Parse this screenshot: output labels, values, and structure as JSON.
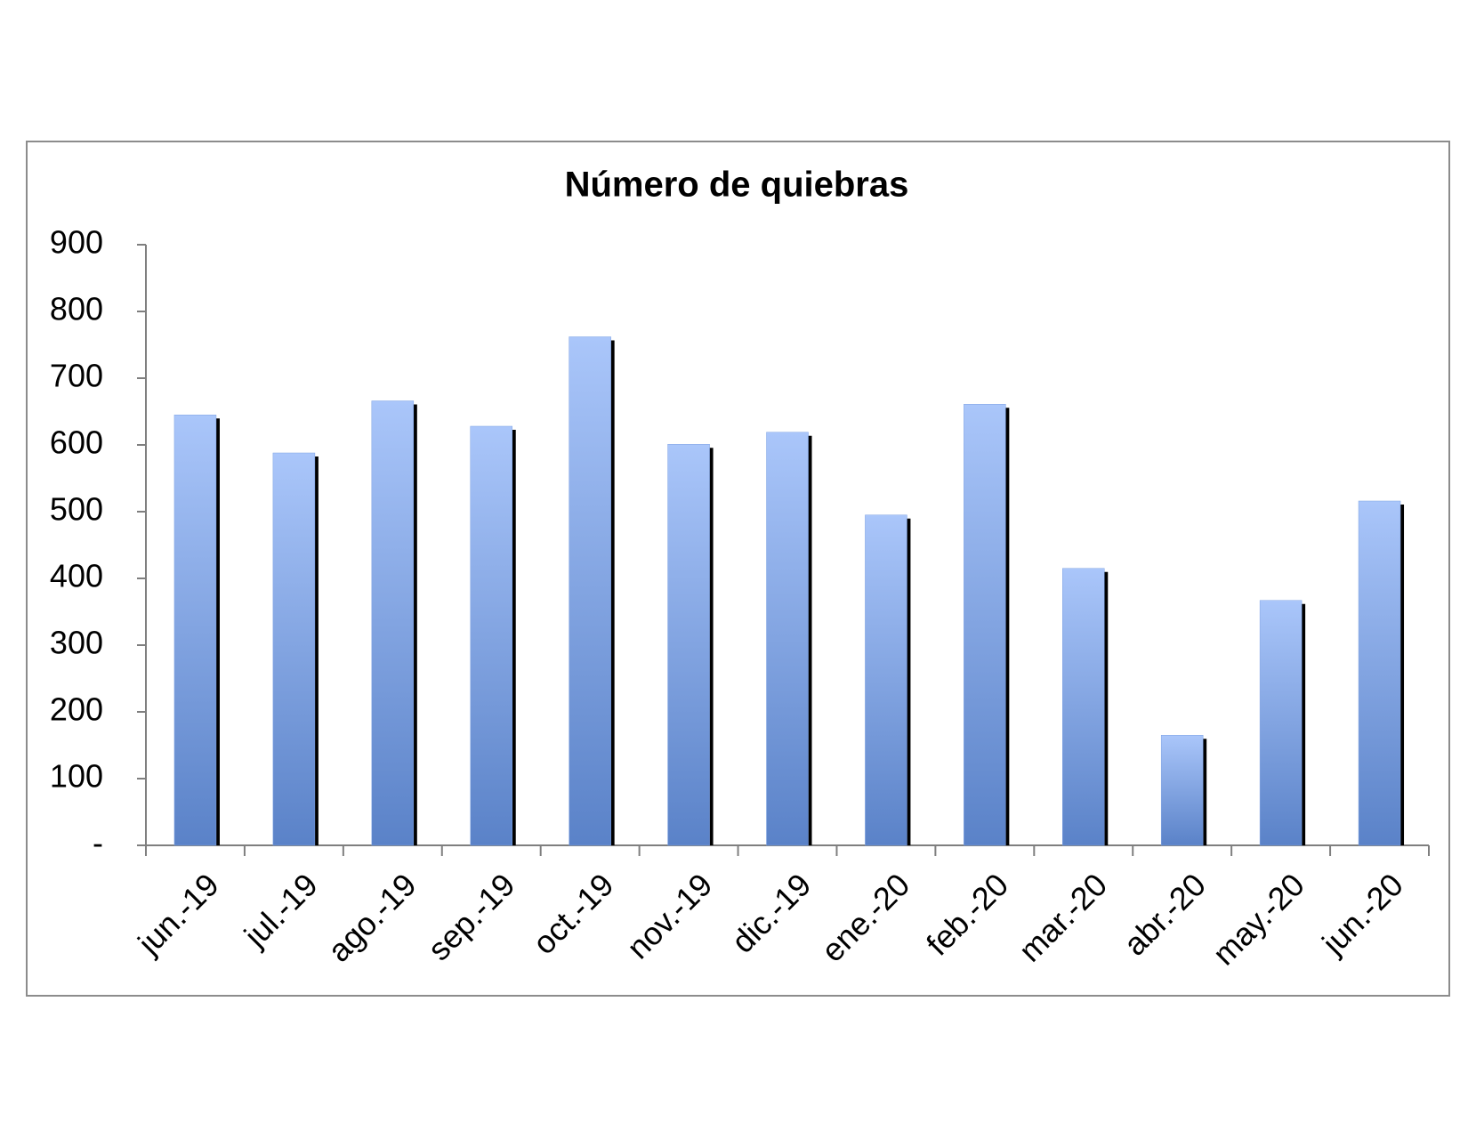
{
  "chart_data": {
    "type": "bar",
    "title": "Número de quiebras",
    "categories": [
      "jun.-19",
      "jul.-19",
      "ago.-19",
      "sep.-19",
      "oct.-19",
      "nov.-19",
      "dic.-19",
      "ene.-20",
      "feb.-20",
      "mar.-20",
      "abr.-20",
      "may.-20",
      "jun.-20"
    ],
    "values": [
      645,
      588,
      666,
      628,
      762,
      601,
      619,
      495,
      661,
      415,
      165,
      367,
      516
    ],
    "color": "#7fa3e3",
    "ylim": [
      0,
      900
    ],
    "yticks": [
      {
        "value": 0,
        "label": "-"
      },
      100,
      200,
      300,
      400,
      500,
      600,
      700,
      800,
      900
    ],
    "grid": false
  }
}
